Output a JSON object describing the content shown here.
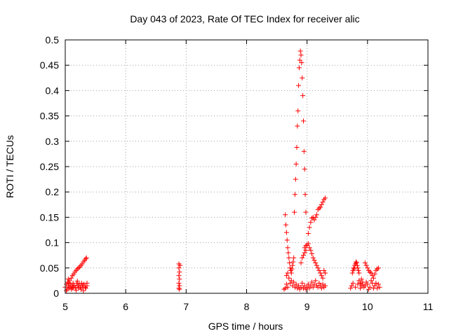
{
  "chart_data": {
    "type": "scatter",
    "title": "Day 043 of 2023, Rate Of TEC Index for receiver alic",
    "xlabel": "GPS time / hours",
    "ylabel": "ROTI / TECUs",
    "xlim": [
      5,
      11
    ],
    "ylim": [
      0,
      0.5
    ],
    "xticks": [
      5,
      6,
      7,
      8,
      9,
      10,
      11
    ],
    "yticks": [
      0,
      0.05,
      0.1,
      0.15,
      0.2,
      0.25,
      0.3,
      0.35,
      0.4,
      0.45,
      0.5
    ],
    "xtick_labels": [
      "5",
      "6",
      "7",
      "8",
      "9",
      "10",
      "11"
    ],
    "ytick_labels": [
      "0",
      "0.05",
      "0.1",
      "0.15",
      "0.2",
      "0.25",
      "0.3",
      "0.35",
      "0.4",
      "0.45",
      "0.5"
    ],
    "grid": true,
    "marker": "+",
    "color": "#ff0000",
    "points": [
      [
        5.0,
        0.012
      ],
      [
        5.02,
        0.018
      ],
      [
        5.03,
        0.008
      ],
      [
        5.04,
        0.022
      ],
      [
        5.05,
        0.015
      ],
      [
        5.06,
        0.01
      ],
      [
        5.07,
        0.025
      ],
      [
        5.08,
        0.012
      ],
      [
        5.09,
        0.018
      ],
      [
        5.1,
        0.03
      ],
      [
        5.11,
        0.014
      ],
      [
        5.12,
        0.035
      ],
      [
        5.13,
        0.02
      ],
      [
        5.14,
        0.038
      ],
      [
        5.15,
        0.016
      ],
      [
        5.16,
        0.042
      ],
      [
        5.17,
        0.012
      ],
      [
        5.18,
        0.045
      ],
      [
        5.19,
        0.02
      ],
      [
        5.2,
        0.048
      ],
      [
        5.21,
        0.015
      ],
      [
        5.22,
        0.05
      ],
      [
        5.23,
        0.018
      ],
      [
        5.24,
        0.052
      ],
      [
        5.25,
        0.012
      ],
      [
        5.26,
        0.055
      ],
      [
        5.27,
        0.02
      ],
      [
        5.28,
        0.058
      ],
      [
        5.29,
        0.015
      ],
      [
        5.3,
        0.062
      ],
      [
        5.31,
        0.018
      ],
      [
        5.32,
        0.065
      ],
      [
        5.33,
        0.012
      ],
      [
        5.34,
        0.068
      ],
      [
        5.35,
        0.07
      ],
      [
        5.36,
        0.015
      ],
      [
        5.02,
        0.005
      ],
      [
        5.06,
        0.02
      ],
      [
        5.1,
        0.008
      ],
      [
        5.14,
        0.012
      ],
      [
        5.18,
        0.006
      ],
      [
        5.22,
        0.01
      ],
      [
        5.26,
        0.008
      ],
      [
        5.3,
        0.005
      ],
      [
        5.34,
        0.01
      ],
      [
        5.05,
        0.028
      ],
      [
        5.12,
        0.01
      ],
      [
        5.2,
        0.024
      ],
      [
        5.28,
        0.012
      ],
      [
        5.36,
        0.02
      ],
      [
        6.88,
        0.058
      ],
      [
        6.88,
        0.05
      ],
      [
        6.89,
        0.042
      ],
      [
        6.88,
        0.035
      ],
      [
        6.89,
        0.028
      ],
      [
        6.88,
        0.02
      ],
      [
        6.89,
        0.015
      ],
      [
        6.88,
        0.01
      ],
      [
        6.89,
        0.008
      ],
      [
        6.9,
        0.055
      ],
      [
        8.64,
        0.155
      ],
      [
        8.65,
        0.135
      ],
      [
        8.66,
        0.12
      ],
      [
        8.67,
        0.105
      ],
      [
        8.68,
        0.09
      ],
      [
        8.69,
        0.08
      ],
      [
        8.7,
        0.07
      ],
      [
        8.71,
        0.06
      ],
      [
        8.72,
        0.05
      ],
      [
        8.73,
        0.045
      ],
      [
        8.74,
        0.04
      ],
      [
        8.75,
        0.048
      ],
      [
        8.76,
        0.055
      ],
      [
        8.77,
        0.062
      ],
      [
        8.78,
        0.07
      ],
      [
        8.79,
        0.16
      ],
      [
        8.8,
        0.195
      ],
      [
        8.81,
        0.225
      ],
      [
        8.82,
        0.255
      ],
      [
        8.83,
        0.288
      ],
      [
        8.84,
        0.33
      ],
      [
        8.85,
        0.36
      ],
      [
        8.86,
        0.41
      ],
      [
        8.87,
        0.445
      ],
      [
        8.88,
        0.46
      ],
      [
        8.89,
        0.478
      ],
      [
        8.9,
        0.47
      ],
      [
        8.91,
        0.455
      ],
      [
        8.92,
        0.425
      ],
      [
        8.93,
        0.39
      ],
      [
        8.94,
        0.34
      ],
      [
        8.95,
        0.28
      ],
      [
        8.96,
        0.245
      ],
      [
        8.97,
        0.195
      ],
      [
        8.98,
        0.16
      ],
      [
        8.7,
        0.03
      ],
      [
        8.72,
        0.02
      ],
      [
        8.74,
        0.025
      ],
      [
        8.76,
        0.015
      ],
      [
        8.78,
        0.022
      ],
      [
        8.8,
        0.012
      ],
      [
        8.82,
        0.018
      ],
      [
        8.84,
        0.01
      ],
      [
        8.86,
        0.015
      ],
      [
        8.88,
        0.008
      ],
      [
        8.9,
        0.012
      ],
      [
        8.92,
        0.02
      ],
      [
        8.94,
        0.01
      ],
      [
        8.96,
        0.015
      ],
      [
        8.98,
        0.008
      ],
      [
        9.0,
        0.095
      ],
      [
        9.02,
        0.098
      ],
      [
        9.04,
        0.09
      ],
      [
        9.06,
        0.085
      ],
      [
        9.08,
        0.078
      ],
      [
        9.1,
        0.07
      ],
      [
        9.12,
        0.065
      ],
      [
        9.14,
        0.06
      ],
      [
        9.16,
        0.055
      ],
      [
        9.18,
        0.05
      ],
      [
        9.2,
        0.045
      ],
      [
        9.22,
        0.04
      ],
      [
        9.24,
        0.035
      ],
      [
        9.26,
        0.03
      ],
      [
        9.28,
        0.045
      ],
      [
        9.3,
        0.04
      ],
      [
        8.96,
        0.09
      ],
      [
        8.98,
        0.094
      ],
      [
        9.02,
        0.118
      ],
      [
        9.04,
        0.13
      ],
      [
        9.06,
        0.14
      ],
      [
        9.08,
        0.148
      ],
      [
        9.1,
        0.15
      ],
      [
        9.12,
        0.145
      ],
      [
        9.14,
        0.15
      ],
      [
        9.16,
        0.155
      ],
      [
        9.18,
        0.165
      ],
      [
        9.2,
        0.168
      ],
      [
        9.22,
        0.17
      ],
      [
        9.24,
        0.175
      ],
      [
        9.26,
        0.18
      ],
      [
        9.28,
        0.185
      ],
      [
        9.3,
        0.188
      ],
      [
        9.0,
        0.012
      ],
      [
        9.02,
        0.018
      ],
      [
        9.04,
        0.01
      ],
      [
        9.06,
        0.015
      ],
      [
        9.08,
        0.022
      ],
      [
        9.1,
        0.012
      ],
      [
        9.12,
        0.018
      ],
      [
        9.14,
        0.025
      ],
      [
        9.16,
        0.015
      ],
      [
        9.18,
        0.012
      ],
      [
        9.2,
        0.02
      ],
      [
        9.22,
        0.015
      ],
      [
        9.24,
        0.01
      ],
      [
        9.26,
        0.018
      ],
      [
        9.28,
        0.012
      ],
      [
        9.3,
        0.015
      ],
      [
        8.9,
        0.06
      ],
      [
        8.92,
        0.07
      ],
      [
        8.94,
        0.075
      ],
      [
        8.96,
        0.08
      ],
      [
        8.98,
        0.085
      ],
      [
        8.68,
        0.012
      ],
      [
        8.66,
        0.018
      ],
      [
        8.64,
        0.01
      ],
      [
        8.62,
        0.008
      ],
      [
        8.66,
        0.035
      ],
      [
        8.68,
        0.04
      ],
      [
        9.72,
        0.01
      ],
      [
        9.74,
        0.015
      ],
      [
        9.75,
        0.04
      ],
      [
        9.76,
        0.045
      ],
      [
        9.77,
        0.05
      ],
      [
        9.78,
        0.048
      ],
      [
        9.79,
        0.055
      ],
      [
        9.8,
        0.058
      ],
      [
        9.81,
        0.062
      ],
      [
        9.82,
        0.06
      ],
      [
        9.83,
        0.055
      ],
      [
        9.84,
        0.05
      ],
      [
        9.85,
        0.045
      ],
      [
        9.86,
        0.04
      ],
      [
        9.88,
        0.02
      ],
      [
        9.9,
        0.015
      ],
      [
        9.92,
        0.018
      ],
      [
        9.94,
        0.012
      ],
      [
        9.96,
        0.06
      ],
      [
        9.98,
        0.055
      ],
      [
        10.0,
        0.05
      ],
      [
        10.02,
        0.045
      ],
      [
        10.04,
        0.042
      ],
      [
        10.06,
        0.04
      ],
      [
        10.08,
        0.035
      ],
      [
        10.1,
        0.03
      ],
      [
        10.12,
        0.038
      ],
      [
        10.14,
        0.045
      ],
      [
        10.16,
        0.048
      ],
      [
        10.18,
        0.05
      ],
      [
        9.8,
        0.012
      ],
      [
        9.84,
        0.018
      ],
      [
        9.88,
        0.01
      ],
      [
        9.92,
        0.022
      ],
      [
        9.96,
        0.015
      ],
      [
        10.0,
        0.018
      ],
      [
        10.04,
        0.012
      ],
      [
        10.08,
        0.02
      ],
      [
        10.12,
        0.015
      ],
      [
        10.16,
        0.01
      ],
      [
        10.18,
        0.018
      ],
      [
        10.2,
        0.012
      ],
      [
        9.76,
        0.02
      ],
      [
        9.86,
        0.025
      ],
      [
        9.98,
        0.022
      ],
      [
        10.06,
        0.025
      ],
      [
        10.14,
        0.02
      ],
      [
        10.1,
        0.01
      ],
      [
        9.9,
        0.028
      ],
      [
        10.02,
        0.008
      ]
    ]
  }
}
